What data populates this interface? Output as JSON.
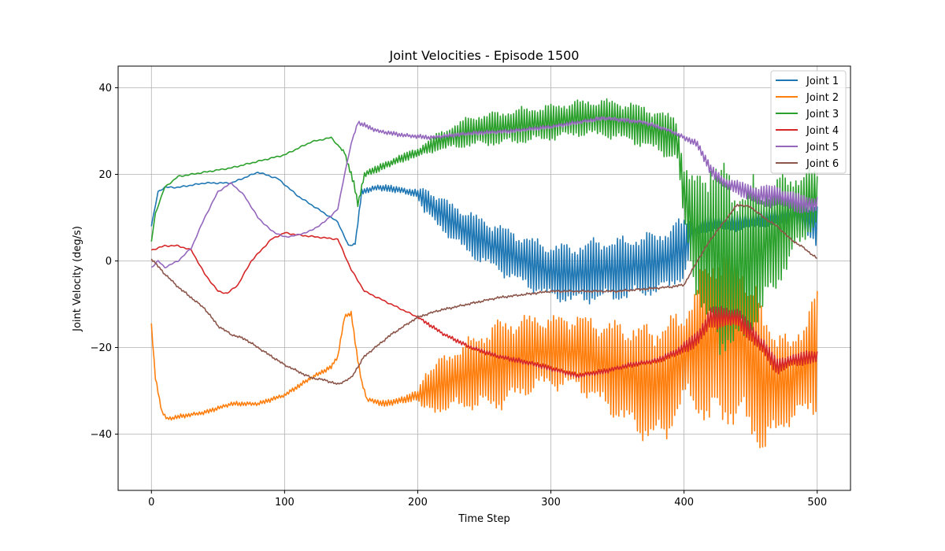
{
  "chart_data": {
    "type": "line",
    "title": "Joint Velocities - Episode 1500",
    "xlabel": "Time Step",
    "ylabel": "Joint Velocity (deg/s)",
    "xlim": [
      -25,
      525
    ],
    "ylim": [
      -53,
      45
    ],
    "xticks": [
      0,
      100,
      200,
      300,
      400,
      500
    ],
    "yticks": [
      -40,
      -20,
      0,
      20,
      40
    ],
    "grid": true,
    "legend_position": "top-right",
    "series": [
      {
        "name": "Joint 1",
        "color": "#1f77b4",
        "base": [
          [
            0,
            8
          ],
          [
            5,
            16
          ],
          [
            10,
            17
          ],
          [
            20,
            17
          ],
          [
            40,
            18
          ],
          [
            60,
            18
          ],
          [
            80,
            20.5
          ],
          [
            95,
            19
          ],
          [
            110,
            15
          ],
          [
            125,
            12
          ],
          [
            140,
            9
          ],
          [
            148,
            3.5
          ],
          [
            153,
            4
          ],
          [
            158,
            16
          ],
          [
            170,
            17
          ],
          [
            185,
            16.5
          ],
          [
            200,
            15.5
          ],
          [
            215,
            11.5
          ],
          [
            240,
            6
          ],
          [
            260,
            3
          ],
          [
            280,
            0
          ],
          [
            300,
            -2.5
          ],
          [
            320,
            -3
          ],
          [
            335,
            -2
          ],
          [
            350,
            -2
          ],
          [
            370,
            -1
          ],
          [
            385,
            0
          ],
          [
            400,
            3
          ],
          [
            410,
            8
          ],
          [
            420,
            9
          ],
          [
            440,
            9
          ],
          [
            460,
            10
          ],
          [
            480,
            11
          ],
          [
            500,
            8
          ]
        ],
        "osc": [
          [
            0,
            0
          ],
          [
            150,
            0
          ],
          [
            160,
            0.6
          ],
          [
            200,
            0.8
          ],
          [
            205,
            3
          ],
          [
            240,
            5
          ],
          [
            290,
            6
          ],
          [
            330,
            7
          ],
          [
            380,
            7
          ],
          [
            400,
            7
          ],
          [
            410,
            2
          ],
          [
            460,
            2
          ],
          [
            480,
            3
          ],
          [
            500,
            5
          ]
        ]
      },
      {
        "name": "Joint 2",
        "color": "#ff7f0e",
        "base": [
          [
            0,
            -15
          ],
          [
            3,
            -27
          ],
          [
            8,
            -35
          ],
          [
            12,
            -36.5
          ],
          [
            20,
            -36
          ],
          [
            40,
            -35
          ],
          [
            60,
            -33
          ],
          [
            80,
            -33
          ],
          [
            100,
            -31
          ],
          [
            110,
            -29
          ],
          [
            120,
            -27
          ],
          [
            135,
            -24.5
          ],
          [
            140,
            -22
          ],
          [
            145,
            -13
          ],
          [
            150,
            -12
          ],
          [
            155,
            -23
          ],
          [
            158,
            -28
          ],
          [
            162,
            -32
          ],
          [
            175,
            -33
          ],
          [
            190,
            -32
          ],
          [
            200,
            -31
          ],
          [
            230,
            -27
          ],
          [
            260,
            -24
          ],
          [
            290,
            -21
          ],
          [
            320,
            -21
          ],
          [
            340,
            -24
          ],
          [
            370,
            -28
          ],
          [
            385,
            -28
          ],
          [
            400,
            -22
          ],
          [
            420,
            -18
          ],
          [
            440,
            -17
          ],
          [
            460,
            -28
          ],
          [
            480,
            -28
          ],
          [
            500,
            -21
          ]
        ],
        "osc": [
          [
            0,
            0.4
          ],
          [
            140,
            0.4
          ],
          [
            160,
            0.4
          ],
          [
            200,
            1
          ],
          [
            205,
            5
          ],
          [
            240,
            8
          ],
          [
            260,
            10
          ],
          [
            300,
            8
          ],
          [
            330,
            9
          ],
          [
            360,
            12
          ],
          [
            385,
            14
          ],
          [
            400,
            10
          ],
          [
            420,
            20
          ],
          [
            440,
            20
          ],
          [
            460,
            16
          ],
          [
            480,
            9
          ],
          [
            500,
            14
          ]
        ]
      },
      {
        "name": "Joint 3",
        "color": "#2ca02c",
        "base": [
          [
            0,
            4.5
          ],
          [
            3,
            11
          ],
          [
            10,
            17
          ],
          [
            20,
            19.5
          ],
          [
            40,
            20.5
          ],
          [
            60,
            21.5
          ],
          [
            80,
            23
          ],
          [
            100,
            24.5
          ],
          [
            120,
            27.5
          ],
          [
            135,
            28.5
          ],
          [
            145,
            25
          ],
          [
            152,
            18
          ],
          [
            155,
            13
          ],
          [
            160,
            20
          ],
          [
            175,
            22
          ],
          [
            190,
            24
          ],
          [
            200,
            25
          ],
          [
            215,
            27.5
          ],
          [
            240,
            30
          ],
          [
            270,
            31
          ],
          [
            300,
            32
          ],
          [
            320,
            33
          ],
          [
            340,
            33
          ],
          [
            360,
            32
          ],
          [
            380,
            30
          ],
          [
            395,
            28
          ],
          [
            400,
            15
          ],
          [
            410,
            5
          ],
          [
            420,
            3
          ],
          [
            440,
            -2
          ],
          [
            460,
            3
          ],
          [
            480,
            10
          ],
          [
            500,
            15
          ]
        ],
        "osc": [
          [
            0,
            0
          ],
          [
            140,
            0
          ],
          [
            150,
            0.6
          ],
          [
            200,
            1
          ],
          [
            215,
            2
          ],
          [
            240,
            3.5
          ],
          [
            280,
            4
          ],
          [
            320,
            4
          ],
          [
            360,
            4.5
          ],
          [
            395,
            5
          ],
          [
            405,
            10
          ],
          [
            420,
            22
          ],
          [
            440,
            20
          ],
          [
            460,
            15
          ],
          [
            480,
            10
          ],
          [
            500,
            6
          ]
        ]
      },
      {
        "name": "Joint 4",
        "color": "#d62728",
        "base": [
          [
            0,
            2.5
          ],
          [
            10,
            3.5
          ],
          [
            20,
            3.5
          ],
          [
            30,
            2.5
          ],
          [
            40,
            -3
          ],
          [
            50,
            -7
          ],
          [
            57,
            -7.5
          ],
          [
            65,
            -5.5
          ],
          [
            75,
            0
          ],
          [
            90,
            5
          ],
          [
            100,
            6.5
          ],
          [
            110,
            6
          ],
          [
            125,
            5.5
          ],
          [
            140,
            5
          ],
          [
            150,
            -2
          ],
          [
            160,
            -7
          ],
          [
            180,
            -10
          ],
          [
            200,
            -13
          ],
          [
            220,
            -17
          ],
          [
            240,
            -20
          ],
          [
            260,
            -22
          ],
          [
            290,
            -24
          ],
          [
            320,
            -26.5
          ],
          [
            340,
            -25.5
          ],
          [
            360,
            -24
          ],
          [
            380,
            -23
          ],
          [
            395,
            -21
          ],
          [
            400,
            -20
          ],
          [
            410,
            -18
          ],
          [
            420,
            -13
          ],
          [
            440,
            -13
          ],
          [
            460,
            -20
          ],
          [
            470,
            -24.5
          ],
          [
            480,
            -23
          ],
          [
            500,
            -22
          ]
        ],
        "osc": [
          [
            0,
            0
          ],
          [
            200,
            0
          ],
          [
            205,
            0.3
          ],
          [
            280,
            0.5
          ],
          [
            380,
            0.5
          ],
          [
            400,
            1.2
          ],
          [
            420,
            2.5
          ],
          [
            460,
            2
          ],
          [
            480,
            1.5
          ],
          [
            500,
            1.5
          ]
        ]
      },
      {
        "name": "Joint 5",
        "color": "#9467bd",
        "base": [
          [
            0,
            -1.5
          ],
          [
            5,
            0
          ],
          [
            10,
            -1.5
          ],
          [
            20,
            0
          ],
          [
            30,
            3
          ],
          [
            40,
            10
          ],
          [
            50,
            16
          ],
          [
            60,
            18
          ],
          [
            70,
            15
          ],
          [
            80,
            10
          ],
          [
            90,
            7
          ],
          [
            100,
            5.5
          ],
          [
            110,
            6
          ],
          [
            120,
            7
          ],
          [
            130,
            9
          ],
          [
            140,
            12
          ],
          [
            145,
            20
          ],
          [
            150,
            27
          ],
          [
            155,
            32
          ],
          [
            170,
            30
          ],
          [
            190,
            29
          ],
          [
            210,
            28.5
          ],
          [
            240,
            29.5
          ],
          [
            270,
            30
          ],
          [
            300,
            31
          ],
          [
            330,
            32.5
          ],
          [
            340,
            33
          ],
          [
            370,
            32
          ],
          [
            390,
            30
          ],
          [
            410,
            27
          ],
          [
            420,
            21
          ],
          [
            430,
            18
          ],
          [
            440,
            17
          ],
          [
            455,
            15
          ],
          [
            470,
            15
          ],
          [
            490,
            13
          ],
          [
            500,
            13
          ]
        ],
        "osc": [
          [
            0,
            0
          ],
          [
            150,
            0
          ],
          [
            155,
            0.4
          ],
          [
            400,
            0.4
          ],
          [
            410,
            1
          ],
          [
            440,
            1.5
          ],
          [
            460,
            2.5
          ],
          [
            500,
            2
          ]
        ]
      },
      {
        "name": "Joint 6",
        "color": "#8c564b",
        "base": [
          [
            0,
            0.5
          ],
          [
            10,
            -3
          ],
          [
            20,
            -6
          ],
          [
            30,
            -8.5
          ],
          [
            40,
            -11
          ],
          [
            50,
            -15
          ],
          [
            60,
            -17
          ],
          [
            70,
            -18
          ],
          [
            80,
            -20
          ],
          [
            90,
            -22
          ],
          [
            100,
            -24
          ],
          [
            110,
            -25.5
          ],
          [
            120,
            -27
          ],
          [
            130,
            -27.5
          ],
          [
            140,
            -28.5
          ],
          [
            150,
            -27
          ],
          [
            160,
            -22
          ],
          [
            170,
            -19.5
          ],
          [
            180,
            -17
          ],
          [
            190,
            -15
          ],
          [
            200,
            -13
          ],
          [
            215,
            -11.5
          ],
          [
            230,
            -10.5
          ],
          [
            260,
            -8.5
          ],
          [
            300,
            -7
          ],
          [
            330,
            -7
          ],
          [
            350,
            -7
          ],
          [
            370,
            -6.5
          ],
          [
            390,
            -6
          ],
          [
            400,
            -5.5
          ],
          [
            410,
            0
          ],
          [
            420,
            5
          ],
          [
            430,
            9
          ],
          [
            440,
            13
          ],
          [
            450,
            12.5
          ],
          [
            460,
            10
          ],
          [
            470,
            8
          ],
          [
            480,
            5
          ],
          [
            490,
            3
          ],
          [
            500,
            0.5
          ]
        ],
        "osc": [
          [
            0,
            0.15
          ],
          [
            500,
            0.15
          ]
        ]
      }
    ]
  }
}
